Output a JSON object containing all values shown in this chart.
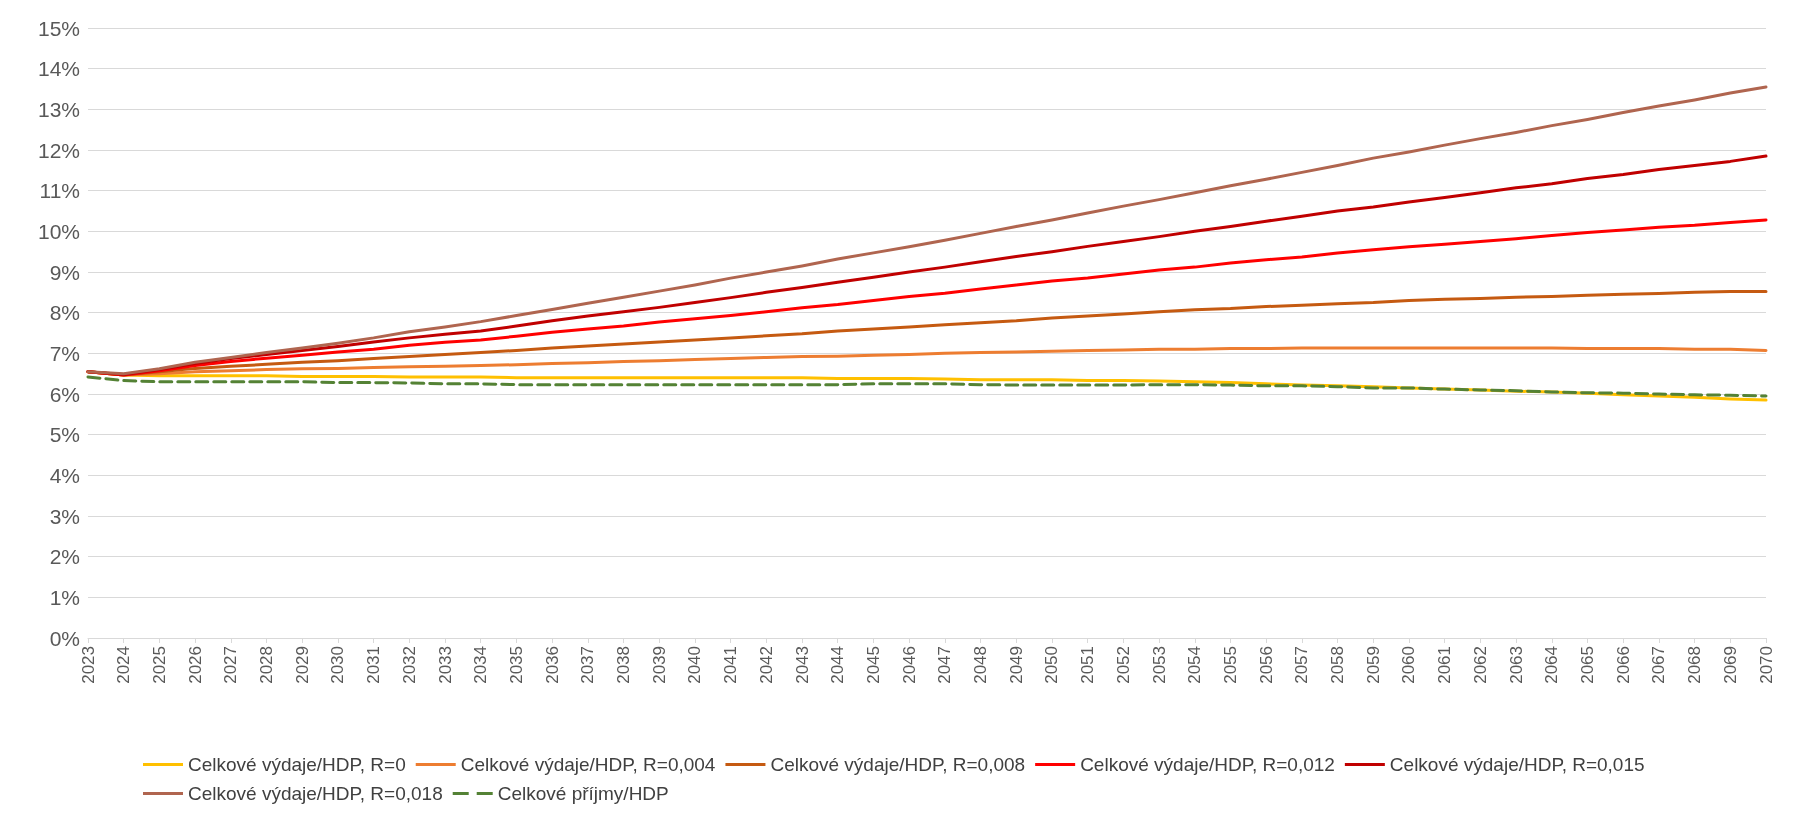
{
  "chart_data": {
    "type": "line",
    "categories": [
      "2023",
      "2024",
      "2025",
      "2026",
      "2027",
      "2028",
      "2029",
      "2030",
      "2031",
      "2032",
      "2033",
      "2034",
      "2035",
      "2036",
      "2037",
      "2038",
      "2039",
      "2040",
      "2041",
      "2042",
      "2043",
      "2044",
      "2045",
      "2046",
      "2047",
      "2048",
      "2049",
      "2050",
      "2051",
      "2052",
      "2053",
      "2054",
      "2055",
      "2056",
      "2057",
      "2058",
      "2059",
      "2060",
      "2061",
      "2062",
      "2063",
      "2064",
      "2065",
      "2066",
      "2067",
      "2068",
      "2069",
      "2070"
    ],
    "ylim": [
      0,
      15
    ],
    "yticks": [
      {
        "value": 0,
        "label": "0%"
      },
      {
        "value": 1,
        "label": "1%"
      },
      {
        "value": 2,
        "label": "2%"
      },
      {
        "value": 3,
        "label": "3%"
      },
      {
        "value": 4,
        "label": "4%"
      },
      {
        "value": 5,
        "label": "5%"
      },
      {
        "value": 6,
        "label": "6%"
      },
      {
        "value": 7,
        "label": "7%"
      },
      {
        "value": 8,
        "label": "8%"
      },
      {
        "value": 9,
        "label": "9%"
      },
      {
        "value": 10,
        "label": "10%"
      },
      {
        "value": 11,
        "label": "11%"
      },
      {
        "value": 12,
        "label": "12%"
      },
      {
        "value": 13,
        "label": "13%"
      },
      {
        "value": 14,
        "label": "14%"
      },
      {
        "value": 15,
        "label": "15%"
      }
    ],
    "grid": "y",
    "legend": "bottom",
    "marker": "none",
    "line_style": "solid",
    "series": [
      {
        "name": "Celkové výdaje/HDP, R=0",
        "color": "#ffc000",
        "values": [
          6.55,
          6.47,
          6.45,
          6.45,
          6.45,
          6.45,
          6.43,
          6.43,
          6.43,
          6.42,
          6.42,
          6.42,
          6.4,
          6.4,
          6.4,
          6.4,
          6.4,
          6.4,
          6.4,
          6.4,
          6.4,
          6.38,
          6.38,
          6.38,
          6.37,
          6.35,
          6.35,
          6.35,
          6.33,
          6.33,
          6.32,
          6.3,
          6.28,
          6.25,
          6.22,
          6.2,
          6.18,
          6.15,
          6.12,
          6.1,
          6.07,
          6.05,
          6.02,
          5.98,
          5.95,
          5.92,
          5.88,
          5.85
        ]
      },
      {
        "name": "Celkové výdaje/HDP, R=0,004",
        "color": "#ed7d31",
        "values": [
          6.55,
          6.47,
          6.5,
          6.55,
          6.57,
          6.6,
          6.62,
          6.63,
          6.65,
          6.67,
          6.68,
          6.7,
          6.72,
          6.75,
          6.77,
          6.8,
          6.82,
          6.85,
          6.87,
          6.9,
          6.92,
          6.93,
          6.95,
          6.97,
          7.0,
          7.02,
          7.03,
          7.05,
          7.07,
          7.08,
          7.1,
          7.1,
          7.12,
          7.12,
          7.13,
          7.13,
          7.13,
          7.13,
          7.13,
          7.13,
          7.13,
          7.13,
          7.12,
          7.12,
          7.12,
          7.1,
          7.1,
          7.07
        ]
      },
      {
        "name": "Celkové výdaje/HDP, R=0,008",
        "color": "#c55a11",
        "values": [
          6.55,
          6.47,
          6.55,
          6.63,
          6.68,
          6.73,
          6.78,
          6.82,
          6.87,
          6.92,
          6.97,
          7.02,
          7.07,
          7.13,
          7.18,
          7.23,
          7.28,
          7.33,
          7.38,
          7.43,
          7.48,
          7.55,
          7.6,
          7.65,
          7.7,
          7.75,
          7.8,
          7.87,
          7.92,
          7.97,
          8.02,
          8.07,
          8.1,
          8.15,
          8.18,
          8.22,
          8.25,
          8.3,
          8.33,
          8.35,
          8.38,
          8.4,
          8.43,
          8.45,
          8.47,
          8.5,
          8.52,
          8.52
        ]
      },
      {
        "name": "Celkové výdaje/HDP, R=0,012",
        "color": "#ff0000",
        "values": [
          6.55,
          6.47,
          6.57,
          6.7,
          6.8,
          6.88,
          6.95,
          7.03,
          7.1,
          7.2,
          7.27,
          7.33,
          7.42,
          7.52,
          7.6,
          7.67,
          7.77,
          7.85,
          7.93,
          8.02,
          8.12,
          8.2,
          8.3,
          8.4,
          8.48,
          8.58,
          8.68,
          8.78,
          8.85,
          8.95,
          9.05,
          9.12,
          9.22,
          9.3,
          9.37,
          9.47,
          9.55,
          9.62,
          9.68,
          9.75,
          9.82,
          9.9,
          9.97,
          10.03,
          10.1,
          10.15,
          10.22,
          10.28
        ]
      },
      {
        "name": "Celkové výdaje/HDP, R=0,015",
        "color": "#c00000",
        "values": [
          6.55,
          6.48,
          6.6,
          6.75,
          6.87,
          6.97,
          7.07,
          7.17,
          7.28,
          7.38,
          7.47,
          7.55,
          7.67,
          7.8,
          7.92,
          8.02,
          8.13,
          8.25,
          8.37,
          8.5,
          8.62,
          8.75,
          8.87,
          9.0,
          9.12,
          9.25,
          9.38,
          9.5,
          9.63,
          9.75,
          9.87,
          10.0,
          10.12,
          10.25,
          10.37,
          10.5,
          10.6,
          10.72,
          10.83,
          10.95,
          11.07,
          11.17,
          11.3,
          11.4,
          11.52,
          11.62,
          11.72,
          11.85
        ]
      },
      {
        "name": "Celkové výdaje/HDP, R=0,018",
        "color": "#b0654f",
        "values": [
          6.55,
          6.5,
          6.62,
          6.78,
          6.9,
          7.02,
          7.13,
          7.25,
          7.38,
          7.53,
          7.65,
          7.78,
          7.93,
          8.08,
          8.23,
          8.38,
          8.53,
          8.68,
          8.85,
          9.0,
          9.15,
          9.32,
          9.47,
          9.62,
          9.78,
          9.95,
          10.12,
          10.28,
          10.45,
          10.62,
          10.78,
          10.95,
          11.12,
          11.28,
          11.45,
          11.62,
          11.8,
          11.95,
          12.12,
          12.28,
          12.43,
          12.6,
          12.75,
          12.92,
          13.08,
          13.23,
          13.4,
          13.55
        ]
      },
      {
        "name": "Celkové příjmy/HDP",
        "color": "#548235",
        "line_style": "dashed",
        "values": [
          6.42,
          6.33,
          6.3,
          6.3,
          6.3,
          6.3,
          6.3,
          6.28,
          6.28,
          6.27,
          6.25,
          6.25,
          6.23,
          6.23,
          6.23,
          6.23,
          6.23,
          6.23,
          6.23,
          6.23,
          6.23,
          6.23,
          6.25,
          6.25,
          6.25,
          6.23,
          6.22,
          6.22,
          6.22,
          6.22,
          6.23,
          6.23,
          6.22,
          6.2,
          6.2,
          6.18,
          6.15,
          6.15,
          6.12,
          6.1,
          6.08,
          6.05,
          6.03,
          6.02,
          6.0,
          5.98,
          5.97,
          5.95
        ]
      }
    ]
  }
}
